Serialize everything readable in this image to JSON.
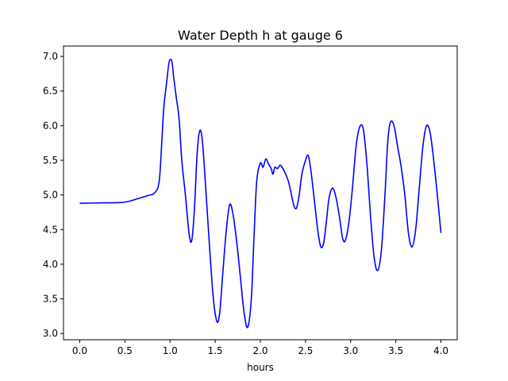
{
  "chart_data": {
    "type": "line",
    "title": "Water Depth h at gauge 6",
    "xlabel": "hours",
    "ylabel": "",
    "xlim": [
      -0.18,
      4.18
    ],
    "ylim": [
      2.91,
      7.15
    ],
    "xticks": [
      0.0,
      0.5,
      1.0,
      1.5,
      2.0,
      2.5,
      3.0,
      3.5,
      4.0
    ],
    "xtick_labels": [
      "0.0",
      "0.5",
      "1.0",
      "1.5",
      "2.0",
      "2.5",
      "3.0",
      "3.5",
      "4.0"
    ],
    "yticks": [
      3.0,
      3.5,
      4.0,
      4.5,
      5.0,
      5.5,
      6.0,
      6.5,
      7.0
    ],
    "ytick_labels": [
      "3.0",
      "3.5",
      "4.0",
      "4.5",
      "5.0",
      "5.5",
      "6.0",
      "6.5",
      "7.0"
    ],
    "grid": false,
    "series": [
      {
        "color": "#0000ff",
        "x": [
          0.0,
          0.2,
          0.45,
          0.55,
          0.65,
          0.75,
          0.83,
          0.88,
          0.91,
          0.93,
          0.96,
          0.99,
          1.02,
          1.04,
          1.07,
          1.1,
          1.13,
          1.17,
          1.21,
          1.24,
          1.27,
          1.3,
          1.33,
          1.36,
          1.4,
          1.44,
          1.48,
          1.52,
          1.55,
          1.58,
          1.62,
          1.66,
          1.7,
          1.74,
          1.78,
          1.82,
          1.86,
          1.9,
          1.93,
          1.96,
          2.0,
          2.03,
          2.06,
          2.09,
          2.12,
          2.14,
          2.16,
          2.19,
          2.22,
          2.25,
          2.28,
          2.31,
          2.34,
          2.37,
          2.4,
          2.43,
          2.46,
          2.5,
          2.53,
          2.56,
          2.6,
          2.64,
          2.67,
          2.7,
          2.73,
          2.76,
          2.8,
          2.84,
          2.88,
          2.91,
          2.94,
          2.98,
          3.02,
          3.06,
          3.1,
          3.14,
          3.18,
          3.22,
          3.26,
          3.3,
          3.34,
          3.38,
          3.41,
          3.44,
          3.48,
          3.52,
          3.56,
          3.6,
          3.64,
          3.68,
          3.72,
          3.76,
          3.8,
          3.84,
          3.88,
          3.92,
          3.96,
          4.0
        ],
        "y": [
          4.88,
          4.885,
          4.89,
          4.91,
          4.95,
          4.99,
          5.03,
          5.2,
          5.8,
          6.25,
          6.6,
          6.92,
          6.93,
          6.7,
          6.4,
          6.1,
          5.5,
          5.0,
          4.45,
          4.34,
          4.8,
          5.6,
          5.93,
          5.75,
          5.0,
          4.2,
          3.5,
          3.17,
          3.3,
          3.8,
          4.45,
          4.86,
          4.7,
          4.3,
          3.8,
          3.3,
          3.09,
          3.5,
          4.4,
          5.2,
          5.46,
          5.4,
          5.52,
          5.45,
          5.38,
          5.3,
          5.4,
          5.38,
          5.43,
          5.38,
          5.3,
          5.2,
          5.03,
          4.85,
          4.81,
          5.0,
          5.3,
          5.5,
          5.57,
          5.35,
          4.9,
          4.45,
          4.25,
          4.3,
          4.6,
          4.95,
          5.1,
          4.95,
          4.65,
          4.38,
          4.34,
          4.6,
          5.1,
          5.7,
          5.98,
          5.95,
          5.45,
          4.7,
          4.1,
          3.91,
          4.2,
          5.0,
          5.75,
          6.05,
          6.0,
          5.7,
          5.4,
          5.0,
          4.45,
          4.25,
          4.5,
          5.1,
          5.7,
          6.0,
          5.9,
          5.5,
          5.0,
          4.45
        ]
      }
    ]
  }
}
